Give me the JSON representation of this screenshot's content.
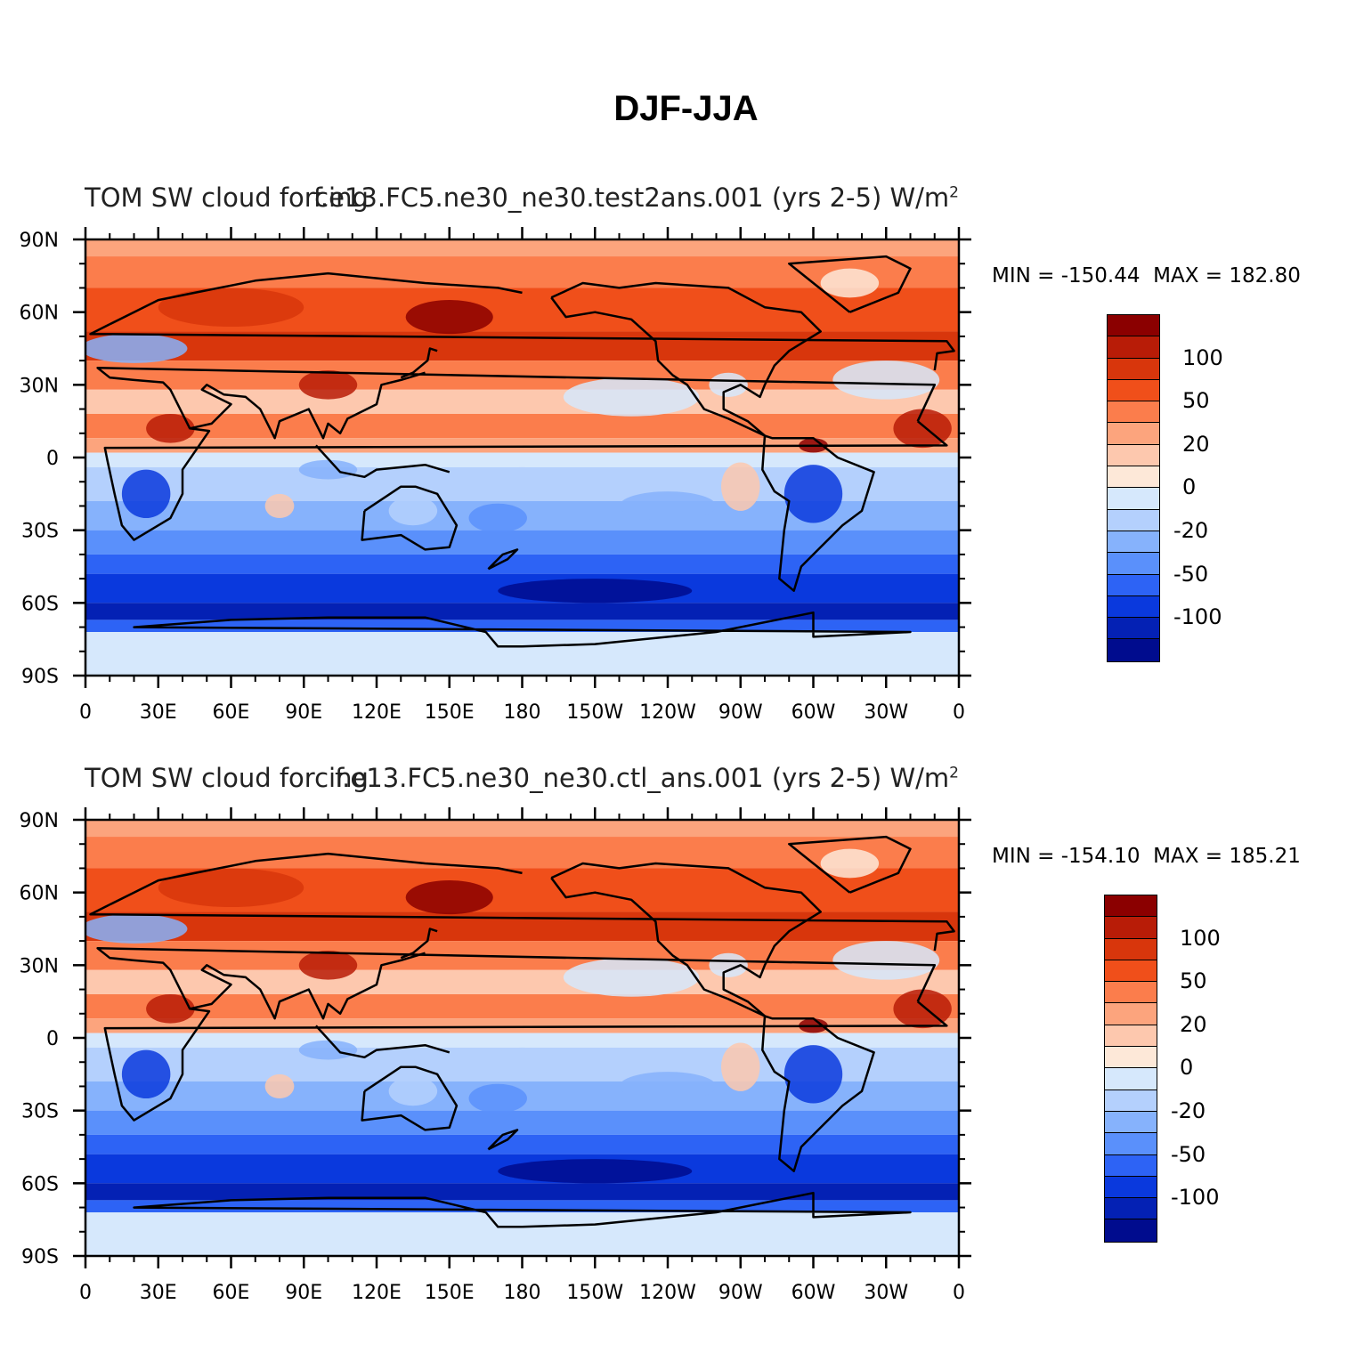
{
  "title": "DJF-JJA",
  "panels": [
    {
      "left_title": "TOM SW cloud forcing",
      "right_title": "f.e13.FC5.ne30_ne30.test2ans.001 (yrs 2-5)  W/m",
      "units_sup": "2",
      "min_label": "MIN = -150.44",
      "max_label": "MAX = 182.80"
    },
    {
      "left_title": "TOM SW cloud forcing",
      "right_title": "f.e13.FC5.ne30_ne30.ctl_ans.001 (yrs 2-5)  W/m",
      "units_sup": "2",
      "min_label": "MIN = -154.10",
      "max_label": "MAX = 185.21"
    }
  ],
  "lat_labels": [
    "90N",
    "60N",
    "30N",
    "0",
    "30S",
    "60S",
    "90S"
  ],
  "lon_labels": [
    "0",
    "30E",
    "60E",
    "90E",
    "120E",
    "150E",
    "180",
    "150W",
    "120W",
    "90W",
    "60W",
    "30W",
    "0"
  ],
  "colorbar": {
    "colors": [
      "#8b0000",
      "#b81c07",
      "#d8360c",
      "#f04f1a",
      "#fb7d4c",
      "#fca47d",
      "#fdc8ae",
      "#fde8d8",
      "#d6e8fc",
      "#b4d0fd",
      "#86b2fc",
      "#5a90fb",
      "#2d63f5",
      "#0a39dd",
      "#0421b4",
      "#000c8e"
    ],
    "labels": [
      "100",
      "50",
      "20",
      "0",
      "-20",
      "-50",
      "-100"
    ]
  }
}
